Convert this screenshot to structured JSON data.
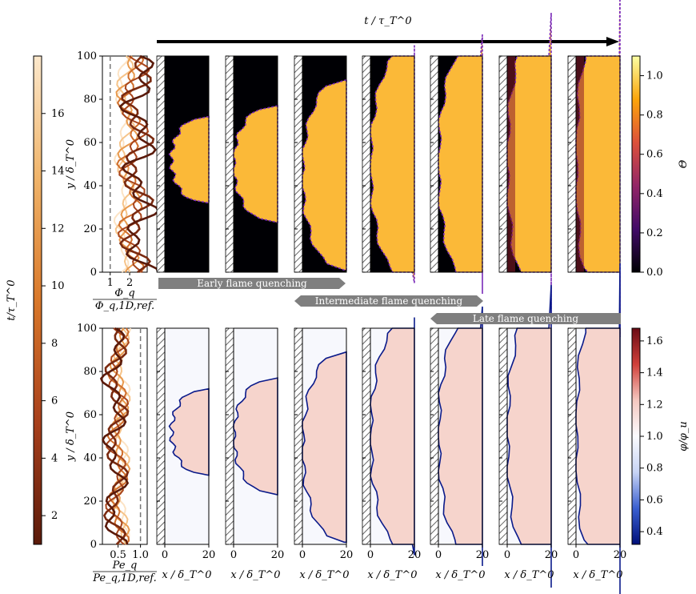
{
  "chart_data": {
    "type": "heatmap",
    "top_label": "t / τ_T^0",
    "phase_labels": [
      "Early flame quenching",
      "Intermediate flame quenching",
      "Late flame quenching"
    ],
    "time_colorbar": {
      "label": "t/τ_T^0",
      "ticks": [
        "2",
        "4",
        "6",
        "8",
        "10",
        "12",
        "14",
        "16"
      ],
      "range": [
        1,
        18
      ],
      "colors": [
        "#5a1a0a",
        "#a8401c",
        "#d9782a",
        "#f0b46a",
        "#fce8cc"
      ]
    },
    "top_row": {
      "field": "Θ",
      "colorbar_ticks": [
        "0.0",
        "0.2",
        "0.4",
        "0.6",
        "0.8",
        "1.0"
      ],
      "range": [
        0,
        1.1
      ],
      "colors": [
        "#000004",
        "#420a68",
        "#932667",
        "#dd513a",
        "#fca50a",
        "#fcffa4"
      ],
      "profile": {
        "xlabel_num": "Φ_q",
        "xlabel_den": "Φ_q,1D,ref.",
        "ylabel": "y / δ_T^0",
        "xticks": [
          "1",
          "2"
        ],
        "yticks": [
          "0",
          "20",
          "40",
          "60",
          "80",
          "100"
        ],
        "reference_line": 1
      }
    },
    "bottom_row": {
      "field": "φ/φ_u",
      "colorbar_ticks": [
        "0.4",
        "0.6",
        "0.8",
        "1.0",
        "1.2",
        "1.4",
        "1.6"
      ],
      "range": [
        0.32,
        1.68
      ],
      "colors": [
        "#00107a",
        "#3a5fd0",
        "#c8d4f5",
        "#fbfbfd",
        "#f5c8c0",
        "#d0403a",
        "#6b0b14"
      ],
      "profile": {
        "xlabel_num": "Pe_q",
        "xlabel_den": "Pe_q,1D,ref.",
        "ylabel": "y / δ_T^0",
        "xticks": [
          "0.5",
          "1.0"
        ],
        "yticks": [
          "0",
          "20",
          "40",
          "60",
          "80",
          "100"
        ],
        "reference_line": 1.0
      }
    },
    "panel_axes": {
      "xlabel": "x / δ_T^0",
      "xticks": [
        "0",
        "20"
      ],
      "y_range": [
        0,
        100
      ],
      "x_range": [
        0,
        20
      ]
    },
    "snapshot_count": 7
  }
}
